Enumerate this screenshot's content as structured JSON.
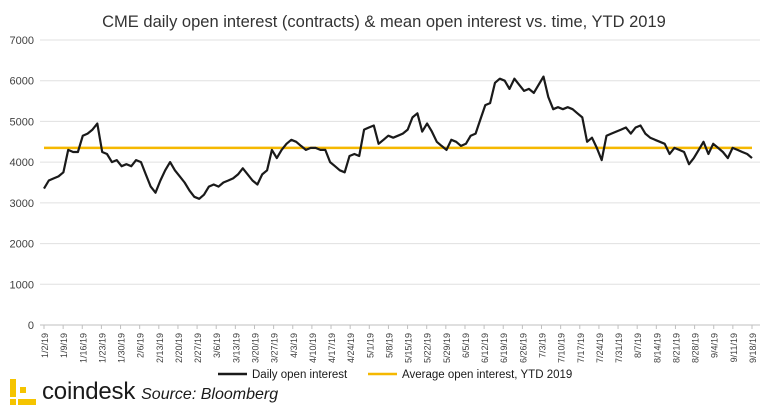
{
  "chart_data": {
    "type": "line",
    "title": "CME daily open interest (contracts) & mean open interest vs. time, YTD 2019",
    "ylim": [
      0,
      7000
    ],
    "yticks": [
      0,
      1000,
      2000,
      3000,
      4000,
      5000,
      6000,
      7000
    ],
    "grid": "horizontal",
    "legend": "bottom",
    "x_labels": [
      "1/2/19",
      "1/9/19",
      "1/16/19",
      "1/23/19",
      "1/30/19",
      "2/6/19",
      "2/13/19",
      "2/20/19",
      "2/27/19",
      "3/6/19",
      "3/13/19",
      "3/20/19",
      "3/27/19",
      "4/3/19",
      "4/10/19",
      "4/17/19",
      "4/24/19",
      "5/1/19",
      "5/8/19",
      "5/15/19",
      "5/22/19",
      "5/29/19",
      "6/5/19",
      "6/12/19",
      "6/19/19",
      "6/26/19",
      "7/3/19",
      "7/10/19",
      "7/17/19",
      "7/24/19",
      "7/31/19",
      "8/7/19",
      "8/14/19",
      "8/21/19",
      "8/28/19",
      "9/4/19",
      "9/11/19",
      "9/18/19"
    ],
    "series": [
      {
        "name": "Daily open interest",
        "color": "#1a1a1a",
        "values": [
          3350,
          3550,
          3600,
          3650,
          3750,
          4300,
          4250,
          4250,
          4650,
          4700,
          4800,
          4950,
          4250,
          4200,
          4000,
          4050,
          3900,
          3950,
          3900,
          4050,
          4000,
          3700,
          3400,
          3250,
          3550,
          3800,
          4000,
          3800,
          3650,
          3500,
          3300,
          3150,
          3100,
          3200,
          3400,
          3450,
          3400,
          3500,
          3550,
          3600,
          3700,
          3850,
          3700,
          3550,
          3450,
          3700,
          3800,
          4300,
          4100,
          4300,
          4450,
          4550,
          4500,
          4400,
          4300,
          4350,
          4350,
          4300,
          4300,
          4000,
          3900,
          3800,
          3750,
          4150,
          4200,
          4150,
          4800,
          4850,
          4900,
          4450,
          4550,
          4650,
          4600,
          4650,
          4700,
          4800,
          5100,
          5200,
          4750,
          4950,
          4750,
          4500,
          4400,
          4300,
          4550,
          4500,
          4400,
          4450,
          4650,
          4700,
          5050,
          5400,
          5450,
          5950,
          6050,
          6000,
          5800,
          6050,
          5900,
          5750,
          5800,
          5700,
          5900,
          6100,
          5600,
          5300,
          5350,
          5300,
          5350,
          5300,
          5200,
          5100,
          4500,
          4600,
          4350,
          4050,
          4650,
          4700,
          4750,
          4800,
          4850,
          4700,
          4850,
          4900,
          4700,
          4600,
          4550,
          4500,
          4450,
          4200,
          4350,
          4300,
          4250,
          3950,
          4100,
          4300,
          4500,
          4200,
          4450,
          4350,
          4250,
          4100,
          4350,
          4300,
          4250,
          4200,
          4100
        ]
      },
      {
        "name": "Average open interest, YTD 2019",
        "color": "#f5b800",
        "value": 4350
      }
    ]
  },
  "branding": {
    "logo_text": "coindesk",
    "source_text": "Source: Bloomberg",
    "logo_color": "#f5c400"
  }
}
